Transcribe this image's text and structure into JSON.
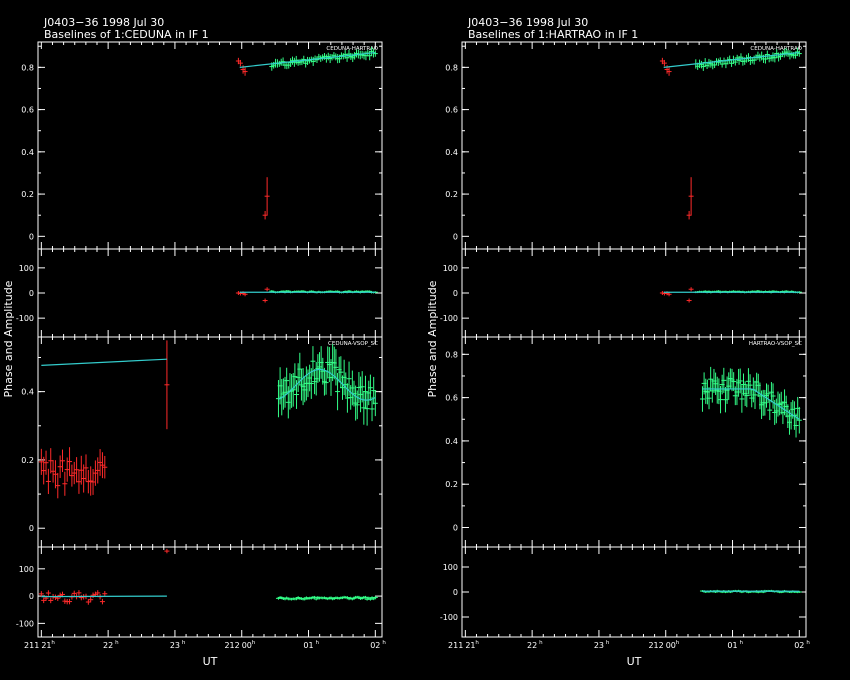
{
  "colors": {
    "background": "#000000",
    "axes": "#ffffff",
    "flagged": "#ff2a2a",
    "good": "#33ff88",
    "model": "#33cccc"
  },
  "common": {
    "ylabel": "Phase and Amplitude",
    "xlabel": "UT",
    "x_ticks": [
      {
        "t": 0,
        "day": "211",
        "h": "21"
      },
      {
        "t": 1,
        "h": "22"
      },
      {
        "t": 2,
        "h": "23"
      },
      {
        "t": 3,
        "day": "212",
        "h": "00"
      },
      {
        "t": 4,
        "h": "01"
      },
      {
        "t": 5,
        "h": "02"
      }
    ]
  },
  "pages": [
    {
      "title1": "J0403−36  1998 Jul 30",
      "title2": "Baselines of 1:CEDUNA in IF 1",
      "baselines": [
        {
          "label": "CEDUNA-HARTRAO",
          "amp_range": [
            -0.06,
            0.92
          ],
          "amp_ticks": [
            0,
            0.2,
            0.4,
            0.6,
            0.8
          ],
          "phase_range": [
            -175,
            175
          ],
          "phase_ticks": [
            -100,
            0,
            100
          ],
          "flagged": [
            {
              "t": 2.95,
              "amp": 0.83,
              "err": 0.015,
              "ph": 0
            },
            {
              "t": 2.98,
              "amp": 0.82,
              "err": 0.015,
              "ph": -2
            },
            {
              "t": 3.02,
              "amp": 0.79,
              "err": 0.02,
              "ph": -1
            },
            {
              "t": 3.05,
              "amp": 0.78,
              "err": 0.02,
              "ph": -5
            },
            {
              "t": 3.35,
              "amp": 0.1,
              "err": 0.02,
              "ph": -30
            },
            {
              "t": 3.38,
              "amp": 0.19,
              "err": 0.09,
              "ph": 15
            }
          ],
          "good": {
            "t_start": 3.45,
            "t_end": 5.0,
            "n": 56,
            "amp_start": 0.81,
            "amp_end": 0.87,
            "amp_jitter": 0.012,
            "amp_err": 0.02,
            "ph_center": 5,
            "ph_jitter": 3,
            "ph_err": 4
          },
          "model_amp": [
            [
              2.97,
              0.8
            ],
            [
              5.0,
              0.87
            ]
          ],
          "model_ph": [
            [
              2.97,
              3
            ],
            [
              5.0,
              3
            ]
          ]
        },
        {
          "label": "CEDUNA-VSOP_SC",
          "amp_range": [
            -0.055,
            0.56
          ],
          "amp_ticks": [
            0,
            0.2,
            0.4
          ],
          "phase_range": [
            -150,
            180
          ],
          "phase_ticks": [
            -100,
            0,
            100
          ],
          "flagged_cluster": {
            "t_start": 0.0,
            "t_end": 0.95,
            "n": 28,
            "amp_center": 0.16,
            "amp_jitter": 0.04,
            "amp_err": 0.04,
            "ph_center": -5,
            "ph_jitter": 18,
            "ph_err": 10
          },
          "flagged": [
            {
              "t": 1.88,
              "amp": 0.42,
              "err": 0.13,
              "ph": 165
            }
          ],
          "good": {
            "t_start": 3.55,
            "t_end": 5.0,
            "n": 60,
            "amp_wave": {
              "base": 0.42,
              "amp": 0.045,
              "phase": 0.0,
              "period": 1.4
            },
            "amp_jitter": 0.04,
            "amp_err": 0.05,
            "ph_center": -8,
            "ph_jitter": 4,
            "ph_err": 5
          },
          "model_amp": [
            [
              0.0,
              0.477
            ],
            [
              1.88,
              0.495
            ]
          ],
          "model_amp_curve": {
            "t_start": 3.55,
            "t_end": 5.0
          },
          "model_ph": [
            [
              0.0,
              -2
            ],
            [
              1.88,
              0
            ]
          ]
        }
      ]
    },
    {
      "title1": "J0403−36  1998 Jul 30",
      "title2": "Baselines of 1:HARTRAO in IF 1",
      "baselines": [
        {
          "label": "CEDUNA-HARTRAO",
          "amp_range": [
            -0.06,
            0.92
          ],
          "amp_ticks": [
            0,
            0.2,
            0.4,
            0.6,
            0.8
          ],
          "phase_range": [
            -175,
            175
          ],
          "phase_ticks": [
            -100,
            0,
            100
          ],
          "flagged": [
            {
              "t": 2.95,
              "amp": 0.83,
              "err": 0.015,
              "ph": 0
            },
            {
              "t": 2.98,
              "amp": 0.82,
              "err": 0.015,
              "ph": -2
            },
            {
              "t": 3.02,
              "amp": 0.79,
              "err": 0.02,
              "ph": -1
            },
            {
              "t": 3.05,
              "amp": 0.78,
              "err": 0.02,
              "ph": -5
            },
            {
              "t": 3.35,
              "amp": 0.1,
              "err": 0.02,
              "ph": -30
            },
            {
              "t": 3.38,
              "amp": 0.19,
              "err": 0.09,
              "ph": 15
            }
          ],
          "good": {
            "t_start": 3.45,
            "t_end": 5.0,
            "n": 56,
            "amp_start": 0.81,
            "amp_end": 0.87,
            "amp_jitter": 0.012,
            "amp_err": 0.02,
            "ph_center": 5,
            "ph_jitter": 3,
            "ph_err": 4
          },
          "model_amp": [
            [
              2.97,
              0.8
            ],
            [
              5.0,
              0.87
            ]
          ],
          "model_ph": [
            [
              2.97,
              3
            ],
            [
              5.0,
              3
            ]
          ]
        },
        {
          "label": "HARTRAO-VSOP_SC",
          "amp_range": [
            -0.09,
            0.88
          ],
          "amp_ticks": [
            0,
            0.2,
            0.4,
            0.6,
            0.8
          ],
          "phase_range": [
            -180,
            180
          ],
          "phase_ticks": [
            -100,
            0,
            100
          ],
          "flagged": [],
          "good": {
            "t_start": 3.55,
            "t_end": 5.0,
            "n": 60,
            "amp_wave": {
              "base": 0.64,
              "amp": 0.0,
              "phase": 0.0,
              "period": 1.0
            },
            "amp_decline": {
              "t0": 4.3,
              "rate": -0.2
            },
            "amp_jitter": 0.05,
            "amp_err": 0.06,
            "ph_center": 2,
            "ph_jitter": 3,
            "ph_err": 4
          },
          "model_amp_curve": {
            "t_start": 3.55,
            "t_end": 5.0
          },
          "model_ph": [
            [
              3.55,
              3
            ],
            [
              5.0,
              3
            ]
          ]
        }
      ]
    }
  ]
}
